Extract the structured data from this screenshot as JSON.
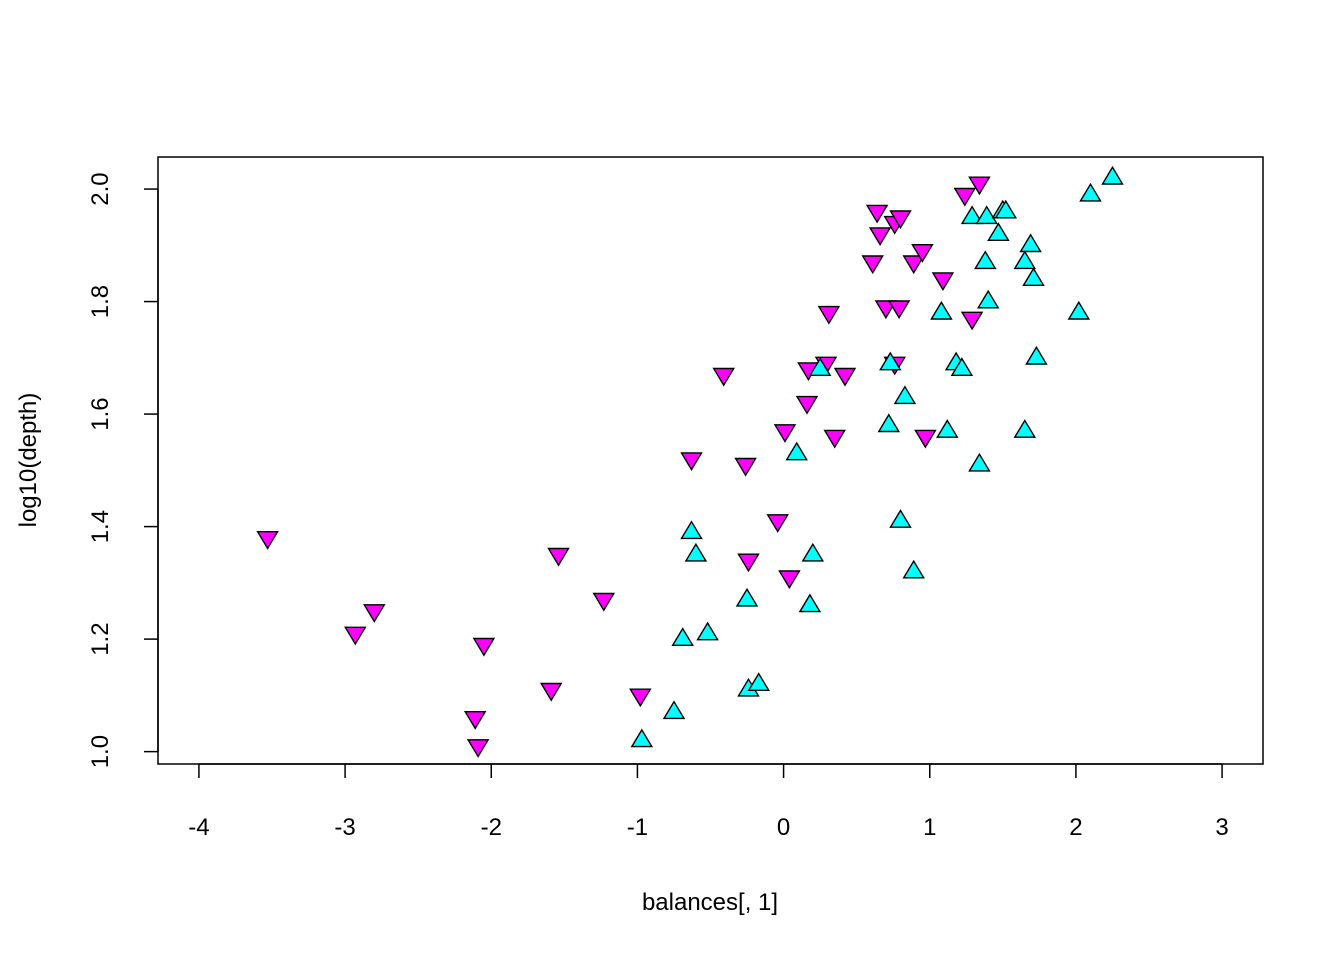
{
  "chart_data": {
    "type": "scatter",
    "title": "",
    "xlabel": "balances[, 1]",
    "ylabel": "log10(depth)",
    "xlim": [
      -4.28,
      3.28
    ],
    "ylim": [
      0.978,
      2.057
    ],
    "x_ticks": [
      -4,
      -3,
      -2,
      -1,
      0,
      1,
      2,
      3
    ],
    "y_ticks": [
      1.0,
      1.2,
      1.4,
      1.6,
      1.8,
      2.0
    ],
    "x_tick_labels": [
      "-4",
      "-3",
      "-2",
      "-1",
      "0",
      "1",
      "2",
      "3"
    ],
    "y_tick_labels": [
      "1.0",
      "1.2",
      "1.4",
      "1.6",
      "1.8",
      "2.0"
    ],
    "grid": false,
    "legend": "none",
    "series": [
      {
        "marker": "triangle-down",
        "color": "#ff00ff",
        "points": [
          [
            -3.53,
            1.38
          ],
          [
            -2.93,
            1.21
          ],
          [
            -2.8,
            1.25
          ],
          [
            -2.11,
            1.06
          ],
          [
            -2.09,
            1.01
          ],
          [
            -2.05,
            1.19
          ],
          [
            -1.59,
            1.11
          ],
          [
            -1.54,
            1.35
          ],
          [
            -1.23,
            1.27
          ],
          [
            -0.98,
            1.1
          ],
          [
            -0.63,
            1.52
          ],
          [
            -0.41,
            1.67
          ],
          [
            -0.26,
            1.51
          ],
          [
            -0.24,
            1.34
          ],
          [
            -0.04,
            1.41
          ],
          [
            0.01,
            1.57
          ],
          [
            0.04,
            1.31
          ],
          [
            0.16,
            1.62
          ],
          [
            0.17,
            1.68
          ],
          [
            0.29,
            1.69
          ],
          [
            0.31,
            1.78
          ],
          [
            0.35,
            1.56
          ],
          [
            0.42,
            1.67
          ],
          [
            0.61,
            1.87
          ],
          [
            0.64,
            1.96
          ],
          [
            0.66,
            1.92
          ],
          [
            0.7,
            1.79
          ],
          [
            0.76,
            1.94
          ],
          [
            0.76,
            1.69
          ],
          [
            0.79,
            1.79
          ],
          [
            0.8,
            1.95
          ],
          [
            0.89,
            1.87
          ],
          [
            0.95,
            1.89
          ],
          [
            0.97,
            1.56
          ],
          [
            1.09,
            1.84
          ],
          [
            1.24,
            1.99
          ],
          [
            1.29,
            1.77
          ],
          [
            1.34,
            2.01
          ]
        ]
      },
      {
        "marker": "triangle-up",
        "color": "#00ffff",
        "points": [
          [
            -0.97,
            1.02
          ],
          [
            -0.75,
            1.07
          ],
          [
            -0.69,
            1.2
          ],
          [
            -0.63,
            1.39
          ],
          [
            -0.6,
            1.35
          ],
          [
            -0.52,
            1.21
          ],
          [
            -0.25,
            1.27
          ],
          [
            -0.24,
            1.11
          ],
          [
            -0.17,
            1.12
          ],
          [
            0.09,
            1.53
          ],
          [
            0.18,
            1.26
          ],
          [
            0.2,
            1.35
          ],
          [
            0.25,
            1.68
          ],
          [
            0.72,
            1.58
          ],
          [
            0.73,
            1.69
          ],
          [
            0.8,
            1.41
          ],
          [
            0.83,
            1.63
          ],
          [
            0.89,
            1.32
          ],
          [
            1.08,
            1.78
          ],
          [
            1.12,
            1.57
          ],
          [
            1.18,
            1.69
          ],
          [
            1.22,
            1.68
          ],
          [
            1.29,
            1.95
          ],
          [
            1.34,
            1.51
          ],
          [
            1.38,
            1.87
          ],
          [
            1.39,
            1.95
          ],
          [
            1.4,
            1.8
          ],
          [
            1.47,
            1.92
          ],
          [
            1.5,
            1.96
          ],
          [
            1.52,
            1.96
          ],
          [
            1.65,
            1.57
          ],
          [
            1.65,
            1.87
          ],
          [
            1.69,
            1.9
          ],
          [
            1.71,
            1.84
          ],
          [
            1.73,
            1.7
          ],
          [
            2.02,
            1.78
          ],
          [
            2.1,
            1.99
          ],
          [
            2.25,
            2.02
          ]
        ]
      }
    ]
  }
}
